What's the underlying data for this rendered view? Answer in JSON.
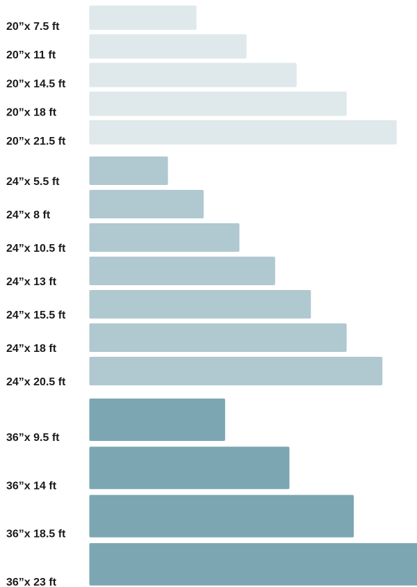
{
  "chart_data": {
    "type": "bar",
    "orientation": "horizontal",
    "title": "",
    "xlabel": "",
    "ylabel": "",
    "grid": false,
    "legend": "none",
    "value_unit": "ft",
    "groups": [
      {
        "width": "20\"",
        "color": "#dfe9eb",
        "bars": [
          {
            "label": "20”x 7.5 ft",
            "value": 7.5
          },
          {
            "label": "20”x 11 ft",
            "value": 11
          },
          {
            "label": "20”x 14.5 ft",
            "value": 14.5
          },
          {
            "label": "20”x 18 ft",
            "value": 18
          },
          {
            "label": "20”x 21.5 ft",
            "value": 21.5
          }
        ]
      },
      {
        "width": "24\"",
        "color": "#b0c8d0",
        "bars": [
          {
            "label": "24”x 5.5 ft",
            "value": 5.5
          },
          {
            "label": "24”x 8 ft",
            "value": 8
          },
          {
            "label": "24”x 10.5 ft",
            "value": 10.5
          },
          {
            "label": "24”x 13 ft",
            "value": 13
          },
          {
            "label": "24”x 15.5 ft",
            "value": 15.5
          },
          {
            "label": "24”x 18 ft",
            "value": 18
          },
          {
            "label": "24”x 20.5 ft",
            "value": 20.5
          }
        ]
      },
      {
        "width": "36\"",
        "color": "#7da6b3",
        "bars": [
          {
            "label": "36”x 9.5 ft",
            "value": 9.5
          },
          {
            "label": "36”x 14 ft",
            "value": 14
          },
          {
            "label": "36”x 18.5 ft",
            "value": 18.5
          },
          {
            "label": "36”x 23 ft",
            "value": 23
          }
        ]
      }
    ]
  }
}
